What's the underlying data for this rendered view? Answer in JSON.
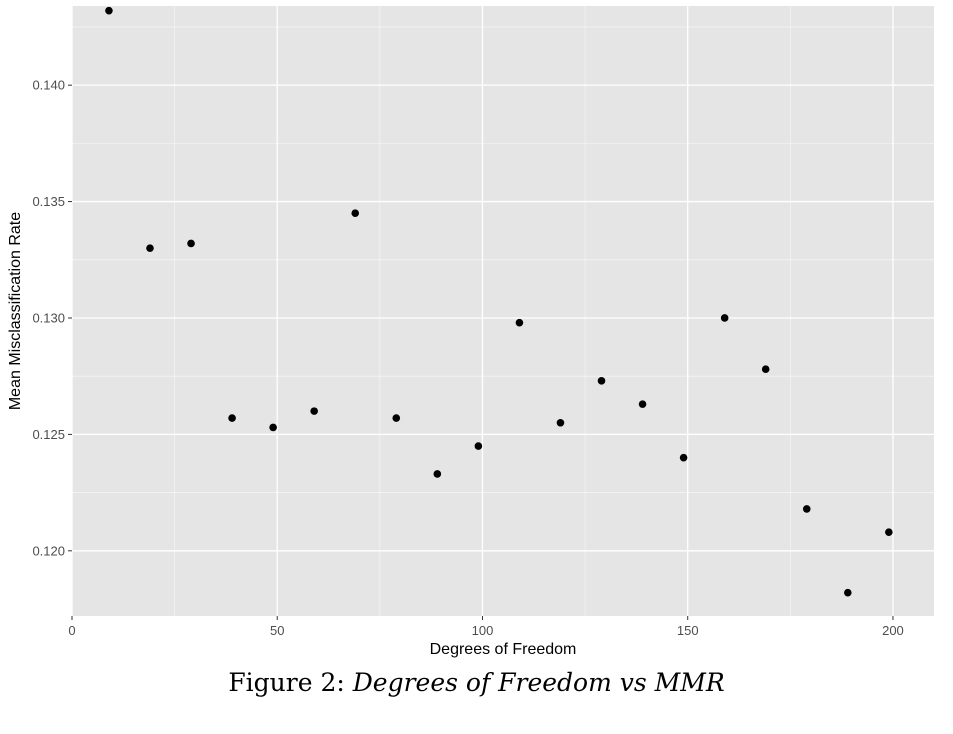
{
  "chart_data": {
    "type": "scatter",
    "title": "",
    "xlabel": "Degrees of Freedom",
    "ylabel": "Mean Misclassification Rate",
    "xlim": [
      0,
      210
    ],
    "ylim": [
      0.1172,
      0.1434
    ],
    "x_ticks": [
      0,
      50,
      100,
      150,
      200
    ],
    "x_tick_labels": [
      "0",
      "50",
      "100",
      "150",
      "200"
    ],
    "y_ticks": [
      0.12,
      0.125,
      0.13,
      0.135,
      0.14
    ],
    "y_tick_labels": [
      "0.120",
      "0.125",
      "0.130",
      "0.135",
      "0.140"
    ],
    "grid": true,
    "background": "#e5e5e5",
    "grid_color": "#ffffff",
    "point_color": "#000000",
    "points": [
      {
        "x": 9,
        "y": 0.1432
      },
      {
        "x": 19,
        "y": 0.133
      },
      {
        "x": 29,
        "y": 0.1332
      },
      {
        "x": 39,
        "y": 0.1257
      },
      {
        "x": 49,
        "y": 0.1253
      },
      {
        "x": 59,
        "y": 0.126
      },
      {
        "x": 69,
        "y": 0.1345
      },
      {
        "x": 79,
        "y": 0.1257
      },
      {
        "x": 89,
        "y": 0.1233
      },
      {
        "x": 99,
        "y": 0.1245
      },
      {
        "x": 109,
        "y": 0.1298
      },
      {
        "x": 119,
        "y": 0.1255
      },
      {
        "x": 129,
        "y": 0.1273
      },
      {
        "x": 139,
        "y": 0.1263
      },
      {
        "x": 149,
        "y": 0.124
      },
      {
        "x": 159,
        "y": 0.13
      },
      {
        "x": 169,
        "y": 0.1278
      },
      {
        "x": 179,
        "y": 0.1218
      },
      {
        "x": 189,
        "y": 0.1182
      },
      {
        "x": 199,
        "y": 0.1208
      }
    ]
  },
  "caption": {
    "prefix": "Figure 2:",
    "title": "Degrees of Freedom vs MMR"
  }
}
